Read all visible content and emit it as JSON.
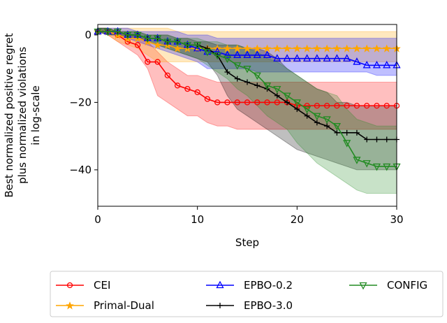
{
  "chart_data": {
    "type": "line",
    "xlabel": "Step",
    "ylabel": [
      "Best normalized positive regret",
      "plus normalized violations",
      "in log-scale"
    ],
    "x": [
      0,
      1,
      2,
      3,
      4,
      5,
      6,
      7,
      8,
      9,
      10,
      11,
      12,
      13,
      14,
      15,
      16,
      17,
      18,
      19,
      20,
      21,
      22,
      23,
      24,
      25,
      26,
      27,
      28,
      29,
      30
    ],
    "xlim": [
      0,
      30
    ],
    "ylim": [
      -50.8,
      3.1
    ],
    "xticks": [
      0,
      10,
      20,
      30
    ],
    "yticks": [
      {
        "value": -40,
        "label": "−40"
      },
      {
        "value": -20,
        "label": "−20"
      },
      0
    ],
    "series": [
      {
        "name": "CEI",
        "color": "#ff0000",
        "marker": "circle",
        "values": [
          1,
          1,
          0,
          -2,
          -3,
          -8,
          -8,
          -12,
          -15,
          -16,
          -17,
          -19,
          -20,
          -20,
          -20,
          -20,
          -20,
          -20,
          -20,
          -20,
          -21,
          -21,
          -21,
          -21,
          -21,
          -21,
          -21,
          -21,
          -21,
          -21,
          -21
        ],
        "upper": [
          2,
          2,
          1,
          0,
          0,
          -2,
          -5,
          -8,
          -10,
          -12,
          -12,
          -13,
          -14,
          -14,
          -14,
          -14,
          -14,
          -14,
          -14,
          -14,
          -14,
          -14,
          -14,
          -14,
          -14,
          -14,
          -14,
          -14,
          -14,
          -14,
          -14
        ],
        "lower": [
          1,
          0,
          -2,
          -4,
          -6,
          -10,
          -18,
          -20,
          -22,
          -24,
          -24,
          -26,
          -27,
          -27,
          -28,
          -28,
          -28,
          -28,
          -28,
          -28,
          -28,
          -28,
          -28,
          -28,
          -28,
          -28,
          -28,
          -28,
          -28,
          -28,
          -28
        ]
      },
      {
        "name": "Primal-Dual",
        "color": "#ffa500",
        "marker": "star",
        "values": [
          1,
          1,
          0,
          -1,
          -1,
          -2,
          -3,
          -3,
          -4,
          -4,
          -4,
          -4,
          -4,
          -4,
          -4,
          -4,
          -4,
          -4,
          -4,
          -4,
          -4,
          -4,
          -4,
          -4,
          -4,
          -4,
          -4,
          -4,
          -4,
          -4,
          -4
        ],
        "upper": [
          2,
          2,
          2,
          2,
          2,
          2,
          2,
          2,
          1,
          1,
          1,
          1,
          1,
          1,
          1,
          1,
          1,
          1,
          1,
          1,
          1,
          1,
          1,
          1,
          1,
          1,
          1,
          1,
          1,
          1,
          1
        ],
        "lower": [
          1,
          0,
          -2,
          -3,
          -4,
          -6,
          -8,
          -8,
          -8,
          -8,
          -8,
          -8,
          -8,
          -8,
          -8,
          -8,
          -8,
          -8,
          -8,
          -8,
          -8,
          -8,
          -8,
          -8,
          -8,
          -8,
          -8,
          -8,
          -8,
          -8,
          -8
        ]
      },
      {
        "name": "EPBO-0.2",
        "color": "#0000ff",
        "marker": "triangle-up",
        "values": [
          1,
          1,
          1,
          0,
          0,
          -1,
          -1,
          -2,
          -2,
          -3,
          -4,
          -5,
          -5,
          -6,
          -6,
          -6,
          -6,
          -6,
          -7,
          -7,
          -7,
          -7,
          -7,
          -7,
          -7,
          -7,
          -8,
          -9,
          -9,
          -9,
          -9
        ],
        "upper": [
          2,
          2,
          2,
          2,
          1,
          1,
          1,
          1,
          1,
          0,
          0,
          0,
          -1,
          -1,
          -1,
          -1,
          -1,
          -1,
          -1,
          -1,
          -1,
          -1,
          -1,
          -1,
          -1,
          -1,
          -1,
          -1,
          -1,
          -1,
          -1
        ],
        "lower": [
          1,
          0,
          0,
          -1,
          -2,
          -3,
          -4,
          -5,
          -6,
          -7,
          -8,
          -10,
          -10,
          -10,
          -10,
          -10,
          -11,
          -11,
          -11,
          -11,
          -11,
          -11,
          -11,
          -11,
          -11,
          -11,
          -11,
          -11,
          -12,
          -12,
          -12
        ]
      },
      {
        "name": "EPBO-3.0",
        "color": "#000000",
        "marker": "plus",
        "values": [
          1,
          1,
          1,
          0,
          0,
          -1,
          -1,
          -2,
          -2,
          -3,
          -3,
          -4,
          -6,
          -11,
          -13,
          -14,
          -15,
          -16,
          -18,
          -20,
          -22,
          -24,
          -26,
          -27,
          -29,
          -29,
          -29,
          -31,
          -31,
          -31,
          -31
        ],
        "upper": [
          2,
          2,
          1,
          1,
          1,
          0,
          0,
          0,
          -1,
          -1,
          -2,
          -2,
          -3,
          -3,
          -3,
          -4,
          -4,
          -5,
          -7,
          -10,
          -12,
          -14,
          -16,
          -17,
          -20,
          -20,
          -21,
          -21,
          -21,
          -21,
          -21
        ],
        "lower": [
          1,
          0,
          0,
          -1,
          -1,
          -2,
          -3,
          -4,
          -5,
          -6,
          -7,
          -8,
          -12,
          -18,
          -22,
          -24,
          -26,
          -28,
          -30,
          -32,
          -34,
          -35,
          -36,
          -37,
          -38,
          -39,
          -40,
          -40,
          -40,
          -40,
          -40
        ]
      },
      {
        "name": "CONFIG",
        "color": "#228b22",
        "marker": "triangle-down",
        "values": [
          1,
          1,
          1,
          0,
          0,
          -1,
          -1,
          -2,
          -2,
          -3,
          -3,
          -5,
          -6,
          -7,
          -9,
          -10,
          -12,
          -15,
          -16,
          -18,
          -20,
          -22,
          -24,
          -25,
          -27,
          -32,
          -37,
          -38,
          -39,
          -39,
          -39
        ],
        "upper": [
          2,
          2,
          1,
          1,
          1,
          0,
          0,
          0,
          -1,
          -1,
          -1,
          -2,
          -2,
          -3,
          -3,
          -4,
          -5,
          -7,
          -8,
          -10,
          -12,
          -14,
          -16,
          -17,
          -18,
          -22,
          -25,
          -26,
          -27,
          -27,
          -27
        ],
        "lower": [
          1,
          0,
          0,
          -1,
          -1,
          -2,
          -3,
          -4,
          -5,
          -6,
          -7,
          -9,
          -11,
          -13,
          -16,
          -18,
          -21,
          -24,
          -26,
          -28,
          -32,
          -35,
          -38,
          -40,
          -42,
          -44,
          -46,
          -47,
          -47,
          -47,
          -47
        ]
      }
    ]
  }
}
